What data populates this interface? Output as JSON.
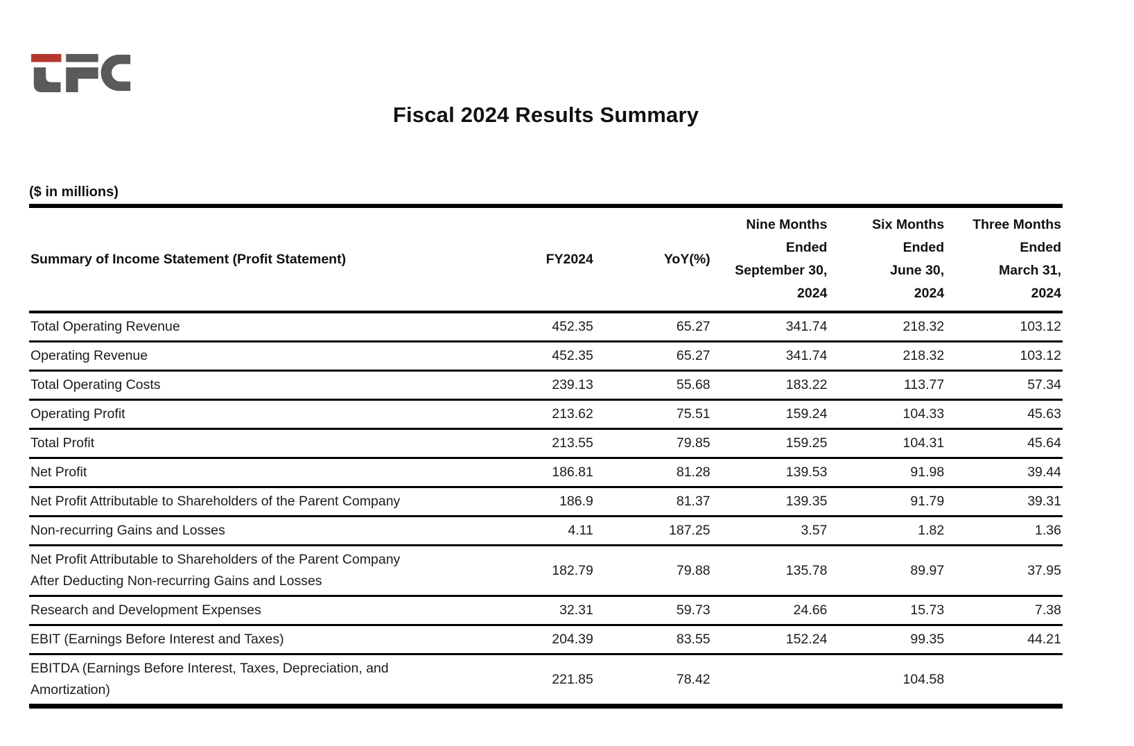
{
  "logo": {
    "letters": "LFC",
    "red_color": "#b5372e",
    "gray_color": "#595a5c"
  },
  "title": "Fiscal 2024 Results Summary",
  "units_note": "($ in millions)",
  "table": {
    "columns": [
      {
        "label": "Summary of Income Statement (Profit Statement)"
      },
      {
        "label": "FY2024"
      },
      {
        "label": "YoY(%)"
      },
      {
        "label": "Nine Months\nEnded\nSeptember 30,\n2024"
      },
      {
        "label": "Six Months\nEnded\nJune 30,\n2024"
      },
      {
        "label": "Three Months\nEnded\nMarch 31,\n2024"
      }
    ],
    "rows": [
      {
        "label": "Total Operating Revenue",
        "values": [
          "452.35",
          "65.27",
          "341.74",
          "218.32",
          "103.12"
        ]
      },
      {
        "label": "Operating Revenue",
        "values": [
          "452.35",
          "65.27",
          "341.74",
          "218.32",
          "103.12"
        ]
      },
      {
        "label": "Total Operating Costs",
        "values": [
          "239.13",
          "55.68",
          "183.22",
          "113.77",
          "57.34"
        ]
      },
      {
        "label": "Operating Profit",
        "values": [
          "213.62",
          "75.51",
          "159.24",
          "104.33",
          "45.63"
        ]
      },
      {
        "label": "Total Profit",
        "values": [
          "213.55",
          "79.85",
          "159.25",
          "104.31",
          "45.64"
        ]
      },
      {
        "label": "Net Profit",
        "values": [
          "186.81",
          "81.28",
          "139.53",
          "91.98",
          "39.44"
        ]
      },
      {
        "label": "Net Profit Attributable to Shareholders of the Parent Company",
        "values": [
          "186.9",
          "81.37",
          "139.35",
          "91.79",
          "39.31"
        ]
      },
      {
        "label": "Non-recurring Gains and Losses",
        "values": [
          "4.11",
          "187.25",
          "3.57",
          "1.82",
          "1.36"
        ]
      },
      {
        "label": "Net Profit Attributable to Shareholders of the Parent Company\nAfter Deducting Non-recurring Gains and Losses",
        "values": [
          "182.79",
          "79.88",
          "135.78",
          "89.97",
          "37.95"
        ]
      },
      {
        "label": "Research and Development Expenses",
        "values": [
          "32.31",
          "59.73",
          "24.66",
          "15.73",
          "7.38"
        ]
      },
      {
        "label": "EBIT (Earnings Before Interest and Taxes)",
        "values": [
          "204.39",
          "83.55",
          "152.24",
          "99.35",
          "44.21"
        ]
      },
      {
        "label": "EBITDA (Earnings Before Interest, Taxes, Depreciation, and\nAmortization)",
        "values": [
          "221.85",
          "78.42",
          "",
          "104.58",
          ""
        ]
      }
    ]
  }
}
